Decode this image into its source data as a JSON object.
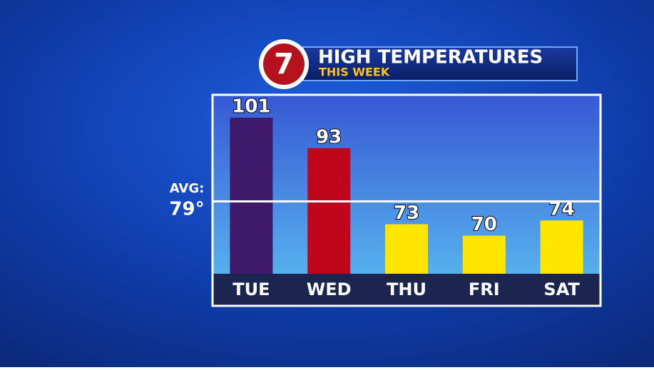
{
  "logo": "7",
  "chart_data": {
    "type": "bar",
    "title": "HIGH TEMPERATURES",
    "subtitle": "THIS WEEK",
    "categories": [
      "TUE",
      "WED",
      "THU",
      "FRI",
      "SAT"
    ],
    "values": [
      101,
      93,
      73,
      70,
      74
    ],
    "colors": [
      "#3f1a6b",
      "#c0061c",
      "#ffe600",
      "#ffe600",
      "#ffe600"
    ],
    "ylim": [
      60,
      107
    ],
    "average": {
      "label": "AVG:",
      "value": 79,
      "value_label": "79°"
    }
  }
}
